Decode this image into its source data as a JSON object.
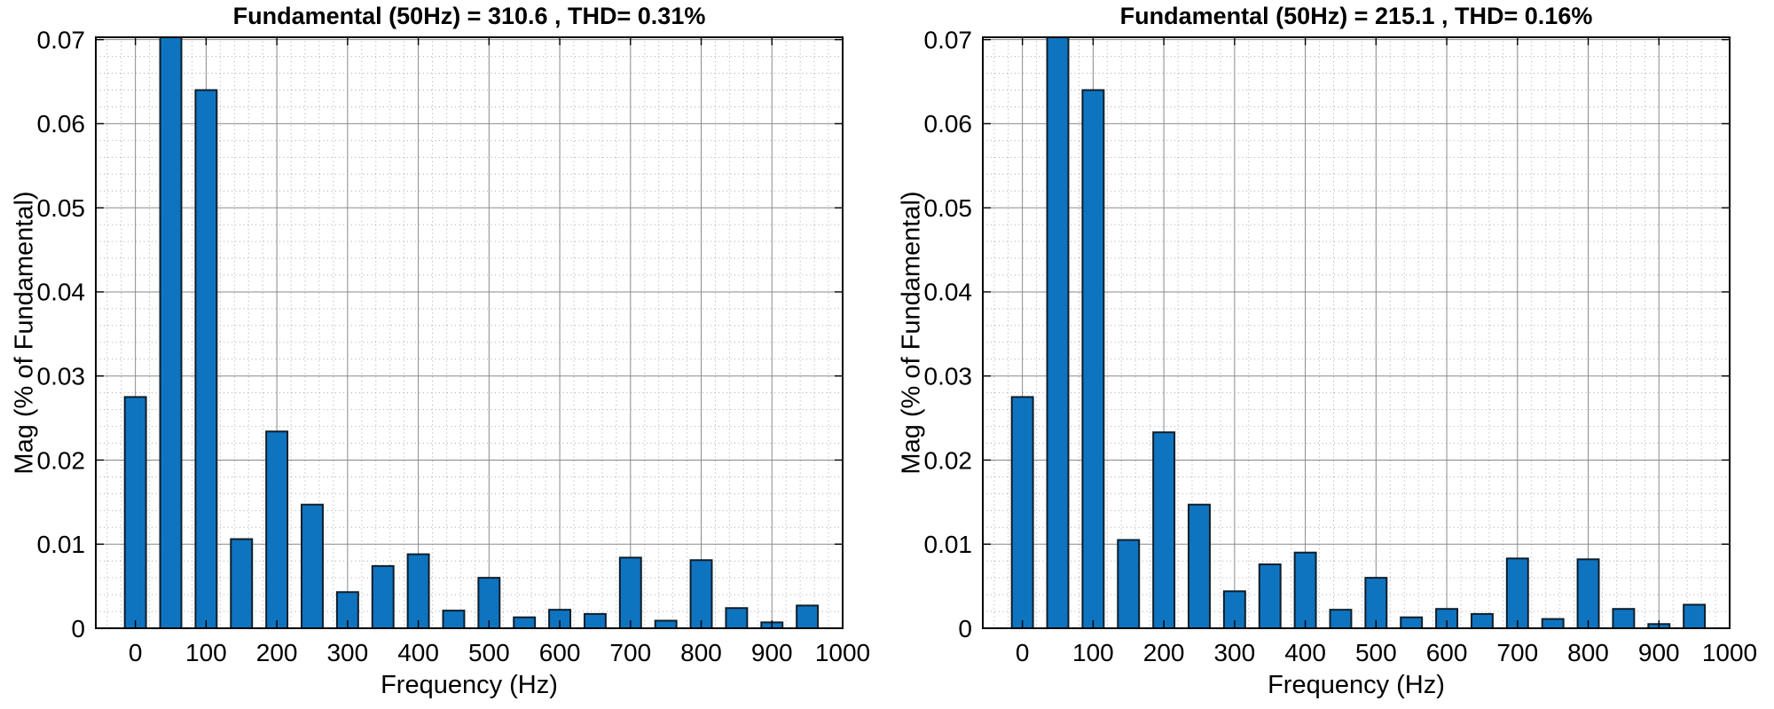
{
  "page": {
    "background": "#ffffff"
  },
  "colors": {
    "bar_fill": "#0f74c0",
    "bar_edge": "#0e1e2a",
    "grid_major": "#8a8a8a",
    "grid_minor": "#aaaaaa",
    "axis_box": "#000000",
    "tick": "#000000",
    "text": "#000000",
    "background": "#ffffff"
  },
  "chart_data": [
    {
      "type": "bar",
      "title": "Fundamental (50Hz) = 310.6 , THD= 0.31%",
      "xlabel": "Frequency (Hz)",
      "ylabel": "Mag (% of Fundamental)",
      "fundamental_hz": 50,
      "fundamental_value": 310.6,
      "thd_percent": 0.31,
      "xlim": [
        -56,
        1000
      ],
      "ylim": [
        0,
        0.07
      ],
      "xticks": [
        0,
        100,
        200,
        300,
        400,
        500,
        600,
        700,
        800,
        900,
        1000
      ],
      "yticks": [
        0,
        0.01,
        0.02,
        0.03,
        0.04,
        0.05,
        0.06,
        0.07
      ],
      "ytick_labels": [
        "0",
        "0.01",
        "0.02",
        "0.03",
        "0.04",
        "0.05",
        "0.06",
        "0.07"
      ],
      "grid": true,
      "minor_grid": true,
      "minor_x_step_hz": 20,
      "minor_y_step": 0.002,
      "bar_width_hz": 30,
      "frequencies_hz": [
        0,
        50,
        100,
        150,
        200,
        250,
        300,
        350,
        400,
        450,
        500,
        550,
        600,
        650,
        700,
        750,
        800,
        850,
        900,
        950
      ],
      "values_pct_of_fundamental": [
        0.0275,
        100,
        0.064,
        0.0106,
        0.0234,
        0.0147,
        0.0043,
        0.0074,
        0.0088,
        0.0021,
        0.006,
        0.0013,
        0.0022,
        0.0017,
        0.0084,
        0.0009,
        0.0081,
        0.0024,
        0.0007,
        0.0027
      ],
      "clipped_note": "50 Hz fundamental bar (100%) is clipped at the 0.07 axis maximum"
    },
    {
      "type": "bar",
      "title": "Fundamental (50Hz) = 215.1 , THD= 0.16%",
      "xlabel": "Frequency (Hz)",
      "ylabel": "Mag (% of Fundamental)",
      "fundamental_hz": 50,
      "fundamental_value": 215.1,
      "thd_percent": 0.16,
      "xlim": [
        -56,
        1000
      ],
      "ylim": [
        0,
        0.07
      ],
      "xticks": [
        0,
        100,
        200,
        300,
        400,
        500,
        600,
        700,
        800,
        900,
        1000
      ],
      "yticks": [
        0,
        0.01,
        0.02,
        0.03,
        0.04,
        0.05,
        0.06,
        0.07
      ],
      "ytick_labels": [
        "0",
        "0.01",
        "0.02",
        "0.03",
        "0.04",
        "0.05",
        "0.06",
        "0.07"
      ],
      "grid": true,
      "minor_grid": true,
      "minor_x_step_hz": 20,
      "minor_y_step": 0.002,
      "bar_width_hz": 30,
      "frequencies_hz": [
        0,
        50,
        100,
        150,
        200,
        250,
        300,
        350,
        400,
        450,
        500,
        550,
        600,
        650,
        700,
        750,
        800,
        850,
        900,
        950
      ],
      "values_pct_of_fundamental": [
        0.0275,
        100,
        0.064,
        0.0105,
        0.0233,
        0.0147,
        0.0044,
        0.0076,
        0.009,
        0.0022,
        0.006,
        0.0013,
        0.0023,
        0.0017,
        0.0083,
        0.0011,
        0.0082,
        0.0023,
        0.0005,
        0.0028
      ],
      "clipped_note": "50 Hz fundamental bar (100%) is clipped at the 0.07 axis maximum"
    }
  ]
}
